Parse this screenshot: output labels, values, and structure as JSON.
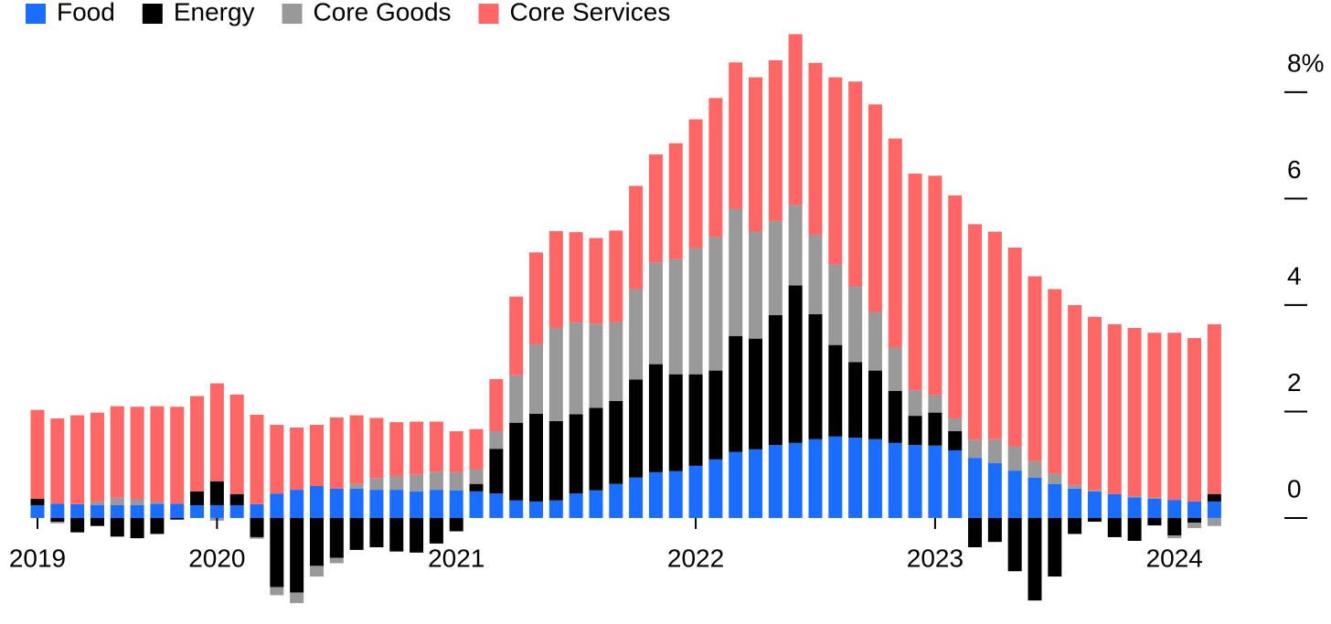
{
  "chart_data": {
    "type": "stacked_bar",
    "categories": [
      "2019",
      null,
      null,
      null,
      null,
      null,
      null,
      null,
      null,
      "2020",
      null,
      null,
      null,
      null,
      null,
      null,
      null,
      null,
      null,
      null,
      null,
      "2021",
      null,
      null,
      null,
      null,
      null,
      null,
      null,
      null,
      null,
      null,
      null,
      "2022",
      null,
      null,
      null,
      null,
      null,
      null,
      null,
      null,
      null,
      null,
      null,
      "2023",
      null,
      null,
      null,
      null,
      null,
      null,
      null,
      null,
      null,
      null,
      null,
      "2024",
      null,
      null
    ],
    "series": [
      {
        "name": "Food",
        "color": "#1a6dff",
        "values": [
          0.24,
          0.27,
          0.26,
          0.24,
          0.24,
          0.24,
          0.27,
          0.27,
          0.24,
          0.24,
          0.24,
          0.26,
          0.46,
          0.53,
          0.6,
          0.55,
          0.55,
          0.53,
          0.53,
          0.5,
          0.53,
          0.52,
          0.5,
          0.46,
          0.33,
          0.31,
          0.33,
          0.46,
          0.52,
          0.64,
          0.76,
          0.86,
          0.88,
          0.98,
          1.1,
          1.24,
          1.29,
          1.37,
          1.41,
          1.48,
          1.53,
          1.51,
          1.48,
          1.41,
          1.37,
          1.36,
          1.27,
          1.13,
          1.03,
          0.89,
          0.76,
          0.64,
          0.55,
          0.5,
          0.45,
          0.39,
          0.36,
          0.34,
          0.31,
          0.31
        ]
      },
      {
        "name": "Energy",
        "color": "#000000",
        "values": [
          0.12,
          -0.07,
          -0.27,
          -0.15,
          -0.35,
          -0.38,
          -0.3,
          -0.03,
          0.26,
          0.45,
          0.21,
          -0.36,
          -1.3,
          -1.4,
          -0.9,
          -0.75,
          -0.6,
          -0.55,
          -0.63,
          -0.65,
          -0.48,
          -0.25,
          0.14,
          0.84,
          1.46,
          1.65,
          1.49,
          1.49,
          1.55,
          1.56,
          1.84,
          2.03,
          1.82,
          1.72,
          1.67,
          2.18,
          2.08,
          2.44,
          2.96,
          2.35,
          1.72,
          1.42,
          1.29,
          0.98,
          0.55,
          0.62,
          0.36,
          -0.55,
          -0.45,
          -1.0,
          -1.55,
          -1.1,
          -0.3,
          -0.07,
          -0.36,
          -0.43,
          -0.14,
          -0.33,
          -0.09,
          0.14
        ]
      },
      {
        "name": "Core Goods",
        "color": "#999999",
        "values": [
          0,
          -0.03,
          0,
          0.07,
          0.14,
          0.12,
          0.03,
          0,
          0,
          -0.05,
          0,
          -0.03,
          -0.15,
          -0.2,
          -0.2,
          -0.1,
          0.09,
          0.22,
          0.26,
          0.31,
          0.34,
          0.34,
          0.27,
          0.33,
          0.89,
          1.3,
          1.75,
          1.72,
          1.58,
          1.48,
          1.7,
          1.91,
          2.16,
          2.37,
          2.51,
          2.39,
          2.01,
          1.77,
          1.51,
          1.49,
          1.51,
          1.42,
          1.1,
          0.81,
          0.48,
          0.33,
          0.24,
          0.34,
          0.45,
          0.45,
          0.31,
          0.19,
          0.07,
          0.02,
          0,
          0.02,
          0.02,
          -0.05,
          -0.1,
          -0.15
        ]
      },
      {
        "name": "Core Services",
        "color": "#ff6666",
        "values": [
          1.67,
          1.6,
          1.67,
          1.67,
          1.72,
          1.73,
          1.8,
          1.82,
          1.79,
          1.84,
          1.87,
          1.68,
          1.29,
          1.17,
          1.15,
          1.34,
          1.29,
          1.13,
          1.01,
          1.0,
          0.94,
          0.77,
          0.76,
          0.98,
          1.48,
          1.73,
          1.82,
          1.7,
          1.61,
          1.72,
          1.94,
          2.03,
          2.18,
          2.42,
          2.61,
          2.75,
          2.9,
          3.02,
          3.21,
          3.23,
          3.52,
          3.85,
          3.9,
          3.93,
          4.07,
          4.12,
          4.19,
          4.05,
          3.9,
          3.74,
          3.47,
          3.47,
          3.38,
          3.26,
          3.19,
          3.16,
          3.1,
          3.14,
          3.07,
          3.19
        ]
      }
    ],
    "ylim": [
      -1.7,
      9.2
    ],
    "yticks": [
      0,
      2,
      4,
      6,
      {
        "value": 8,
        "label": "8%"
      }
    ],
    "legend": "top-left"
  }
}
